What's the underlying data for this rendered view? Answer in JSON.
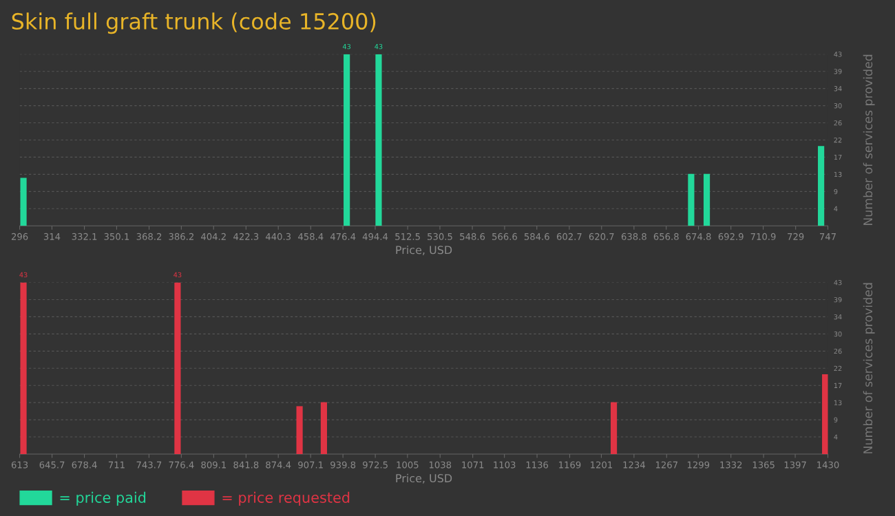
{
  "chart_data": [
    {
      "type": "bar",
      "title": "Skin full graft trunk (code 15200)",
      "xlabel": "Price, USD",
      "ylabel": "Number of services provided",
      "x": [
        298.1,
        478.5,
        496.3,
        670.7,
        679.4,
        743.2
      ],
      "series": [
        {
          "name": "= price paid",
          "color": "#22d89a",
          "values": [
            12,
            43,
            43,
            13,
            13,
            20
          ],
          "value_labels": [
            null,
            "43",
            "43",
            null,
            null,
            null
          ]
        }
      ],
      "xlim": [
        296,
        747
      ],
      "xticks": [
        296,
        314,
        332.1,
        350.1,
        368.2,
        386.2,
        404.2,
        422.3,
        440.3,
        458.4,
        476.4,
        494.4,
        512.5,
        530.5,
        548.6,
        566.6,
        584.6,
        602.7,
        620.7,
        638.8,
        656.8,
        674.8,
        692.9,
        710.9,
        729,
        747
      ],
      "ylim": [
        0,
        43
      ],
      "yticks": [
        {
          "value": 4.3,
          "label": "4"
        },
        {
          "value": 8.6,
          "label": "9"
        },
        {
          "value": 12.9,
          "label": "13"
        },
        {
          "value": 17.2,
          "label": "17"
        },
        {
          "value": 21.5,
          "label": "22"
        },
        {
          "value": 25.8,
          "label": "26"
        },
        {
          "value": 30.1,
          "label": "30"
        },
        {
          "value": 34.4,
          "label": "34"
        },
        {
          "value": 38.7,
          "label": "39"
        },
        {
          "value": 43,
          "label": "43"
        }
      ],
      "grid": "y",
      "legend": "bottom"
    },
    {
      "type": "bar",
      "xlabel": "Price, USD",
      "ylabel": "Number of services provided",
      "x": [
        616.8,
        772.6,
        895.9,
        920.5,
        1213.6,
        1427.3
      ],
      "series": [
        {
          "name": "= price requested",
          "color": "#e03444",
          "values": [
            43,
            43,
            12,
            13,
            13,
            20
          ],
          "value_labels": [
            "43",
            "43",
            null,
            null,
            null,
            null
          ]
        }
      ],
      "xlim": [
        613,
        1430
      ],
      "xticks": [
        613,
        645.7,
        678.4,
        711,
        743.7,
        776.4,
        809.1,
        841.8,
        874.4,
        907.1,
        939.8,
        972.5,
        1005,
        1038,
        1071,
        1103,
        1136,
        1169,
        1201,
        1234,
        1267,
        1299,
        1332,
        1365,
        1397,
        1430
      ],
      "ylim": [
        0,
        43
      ],
      "yticks": [
        {
          "value": 4.3,
          "label": "4"
        },
        {
          "value": 8.6,
          "label": "9"
        },
        {
          "value": 12.9,
          "label": "13"
        },
        {
          "value": 17.2,
          "label": "17"
        },
        {
          "value": 21.5,
          "label": "22"
        },
        {
          "value": 25.8,
          "label": "26"
        },
        {
          "value": 30.1,
          "label": "30"
        },
        {
          "value": 34.4,
          "label": "34"
        },
        {
          "value": 38.7,
          "label": "39"
        },
        {
          "value": 43,
          "label": "43"
        }
      ],
      "grid": "y",
      "legend": "bottom"
    }
  ]
}
